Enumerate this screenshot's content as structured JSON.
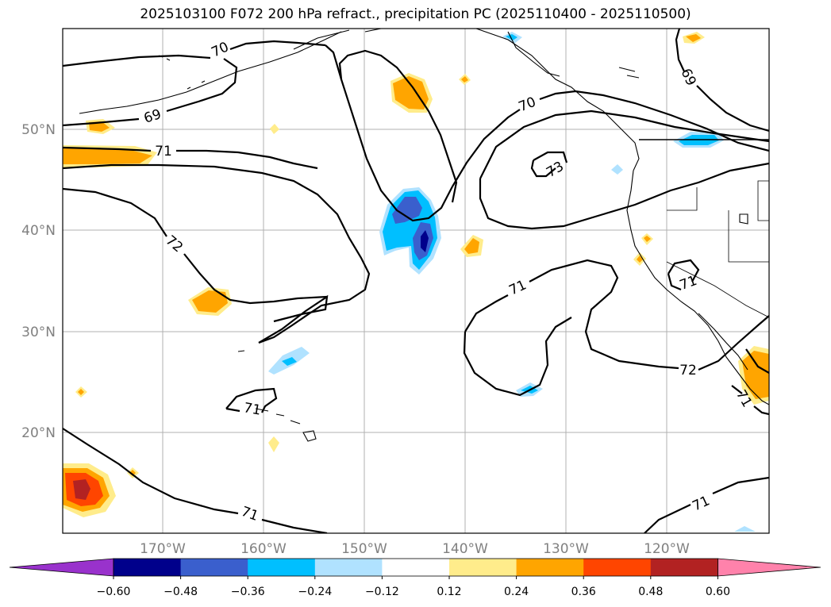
{
  "title": "2025103100 F072 200 hPa refract., precipitation PC (2025110400 - 2025110500)",
  "map": {
    "lat_labels": [
      "50°N",
      "40°N",
      "30°N",
      "20°N"
    ],
    "lon_labels": [
      "170°W",
      "160°W",
      "150°W",
      "140°W",
      "130°W",
      "120°W"
    ],
    "contour_labels": [
      "70",
      "69",
      "71",
      "72",
      "70",
      "73",
      "69",
      "71",
      "71",
      "72",
      "71",
      "71",
      "71"
    ]
  },
  "colorbar": {
    "ticks": [
      "−0.60",
      "−0.48",
      "−0.36",
      "−0.24",
      "−0.12",
      "0.12",
      "0.24",
      "0.36",
      "0.48",
      "0.60"
    ],
    "colors": [
      "#9932cc",
      "#00008b",
      "#3a5fcd",
      "#00bfff",
      "#b0e2ff",
      "#ffffff",
      "#ffec8b",
      "#ffa500",
      "#ff4500",
      "#b22222",
      "#ff82ab"
    ]
  }
}
